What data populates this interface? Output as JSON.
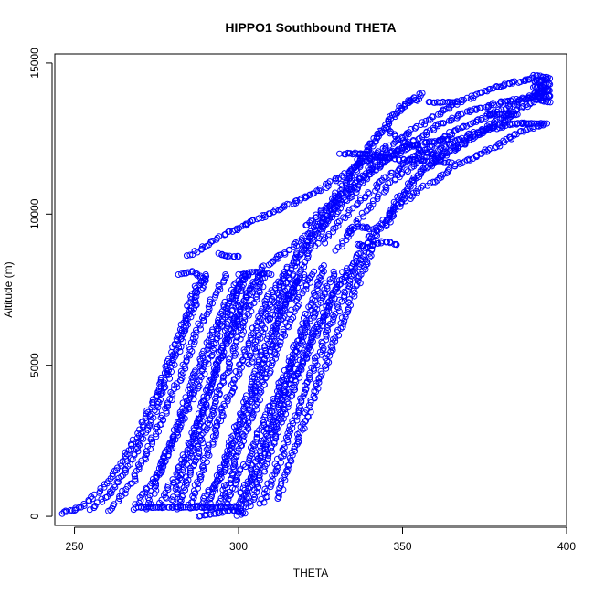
{
  "chart_data": {
    "type": "scatter",
    "title": "HIPPO1 Southbound THETA",
    "xlabel": "THETA",
    "ylabel": "Altitude (m)",
    "xlim": [
      244,
      400
    ],
    "ylim": [
      -300,
      15300
    ],
    "xticks": [
      250,
      300,
      350,
      400
    ],
    "yticks": [
      0,
      5000,
      10000,
      15000
    ],
    "marker": "open-circle",
    "color": "#0000ff",
    "grid": false,
    "legend": "none",
    "profiles": [
      [
        [
          246,
          100
        ],
        [
          252,
          300
        ],
        [
          258,
          900
        ],
        [
          264,
          1700
        ],
        [
          270,
          2800
        ],
        [
          276,
          4300
        ],
        [
          282,
          6000
        ],
        [
          287,
          7600
        ],
        [
          290,
          7800
        ]
      ],
      [
        [
          255,
          200
        ],
        [
          262,
          900
        ],
        [
          268,
          2000
        ],
        [
          274,
          3400
        ],
        [
          280,
          5000
        ],
        [
          285,
          6600
        ],
        [
          290,
          8000
        ]
      ],
      [
        [
          260,
          150
        ],
        [
          268,
          1200
        ],
        [
          275,
          2800
        ],
        [
          282,
          4600
        ],
        [
          288,
          6300
        ],
        [
          293,
          7400
        ],
        [
          296,
          8000
        ]
      ],
      [
        [
          268,
          200
        ],
        [
          276,
          1500
        ],
        [
          283,
          3200
        ],
        [
          290,
          5000
        ],
        [
          296,
          6600
        ],
        [
          301,
          7900
        ],
        [
          303,
          8000
        ]
      ],
      [
        [
          272,
          250
        ],
        [
          278,
          2000
        ],
        [
          284,
          3800
        ],
        [
          290,
          5600
        ],
        [
          296,
          7000
        ],
        [
          300,
          7800
        ]
      ],
      [
        [
          276,
          300
        ],
        [
          283,
          1800
        ],
        [
          289,
          3600
        ],
        [
          295,
          5400
        ],
        [
          301,
          7000
        ],
        [
          307,
          8000
        ]
      ],
      [
        [
          281,
          250
        ],
        [
          287,
          2000
        ],
        [
          293,
          3800
        ],
        [
          299,
          5600
        ],
        [
          304,
          7000
        ],
        [
          308,
          7900
        ]
      ],
      [
        [
          285,
          300
        ],
        [
          291,
          2200
        ],
        [
          297,
          4000
        ],
        [
          303,
          5700
        ],
        [
          309,
          7200
        ],
        [
          314,
          8000
        ]
      ],
      [
        [
          290,
          200
        ],
        [
          296,
          1900
        ],
        [
          302,
          3700
        ],
        [
          308,
          5500
        ],
        [
          314,
          7100
        ],
        [
          320,
          8000
        ]
      ],
      [
        [
          294,
          300
        ],
        [
          300,
          2100
        ],
        [
          306,
          3900
        ],
        [
          312,
          5600
        ],
        [
          318,
          7100
        ],
        [
          323,
          8100
        ]
      ],
      [
        [
          299,
          200
        ],
        [
          305,
          1800
        ],
        [
          311,
          3500
        ],
        [
          317,
          5200
        ],
        [
          323,
          6800
        ],
        [
          329,
          8100
        ]
      ],
      [
        [
          303,
          300
        ],
        [
          309,
          2000
        ],
        [
          315,
          3800
        ],
        [
          321,
          5400
        ],
        [
          327,
          6900
        ],
        [
          333,
          8200
        ]
      ],
      [
        [
          307,
          400
        ],
        [
          314,
          2300
        ],
        [
          320,
          4100
        ],
        [
          326,
          5800
        ],
        [
          332,
          7300
        ],
        [
          338,
          8600
        ]
      ],
      [
        [
          300,
          0
        ],
        [
          306,
          1700
        ],
        [
          312,
          3300
        ],
        [
          318,
          4900
        ],
        [
          324,
          6300
        ],
        [
          330,
          7500
        ],
        [
          336,
          8400
        ]
      ],
      [
        [
          312,
          600
        ],
        [
          318,
          2500
        ],
        [
          324,
          4300
        ],
        [
          330,
          6000
        ],
        [
          336,
          7600
        ],
        [
          341,
          9000
        ]
      ],
      [
        [
          296,
          400
        ],
        [
          304,
          2200
        ],
        [
          311,
          3900
        ],
        [
          317,
          5500
        ],
        [
          322,
          7000
        ],
        [
          326,
          8300
        ]
      ],
      [
        [
          288,
          300
        ],
        [
          295,
          1400
        ],
        [
          301,
          3000
        ],
        [
          307,
          4800
        ],
        [
          313,
          6500
        ],
        [
          318,
          7800
        ]
      ],
      [
        [
          280,
          500
        ],
        [
          285,
          2000
        ],
        [
          290,
          3800
        ],
        [
          295,
          5500
        ],
        [
          299,
          7000
        ],
        [
          302,
          8000
        ]
      ],
      [
        [
          303,
          5000
        ],
        [
          310,
          7000
        ],
        [
          317,
          8600
        ],
        [
          322,
          9200
        ],
        [
          328,
          9900
        ],
        [
          334,
          10600
        ],
        [
          340,
          11300
        ],
        [
          346,
          11900
        ],
        [
          352,
          12200
        ]
      ],
      [
        [
          298,
          6000
        ],
        [
          304,
          7600
        ],
        [
          308,
          8300
        ],
        [
          314,
          8700
        ],
        [
          320,
          9200
        ],
        [
          326,
          9800
        ],
        [
          332,
          10500
        ],
        [
          338,
          11300
        ],
        [
          344,
          12000
        ]
      ],
      [
        [
          310,
          6500
        ],
        [
          318,
          8500
        ],
        [
          326,
          10000
        ],
        [
          333,
          11200
        ],
        [
          340,
          12300
        ],
        [
          347,
          13200
        ],
        [
          352,
          13700
        ],
        [
          355,
          13800
        ]
      ],
      [
        [
          315,
          7200
        ],
        [
          323,
          9000
        ],
        [
          330,
          10400
        ],
        [
          337,
          11700
        ],
        [
          343,
          12700
        ],
        [
          349,
          13500
        ],
        [
          356,
          14000
        ]
      ],
      [
        [
          285,
          8600
        ],
        [
          295,
          9300
        ],
        [
          305,
          9800
        ],
        [
          315,
          10300
        ],
        [
          325,
          10800
        ],
        [
          335,
          11500
        ],
        [
          345,
          12200
        ],
        [
          355,
          12900
        ],
        [
          365,
          13600
        ],
        [
          378,
          14200
        ],
        [
          390,
          14500
        ]
      ],
      [
        [
          320,
          9600
        ],
        [
          330,
          10500
        ],
        [
          340,
          11400
        ],
        [
          350,
          12200
        ],
        [
          360,
          12900
        ],
        [
          370,
          13400
        ],
        [
          380,
          13700
        ],
        [
          392,
          13900
        ]
      ],
      [
        [
          325,
          9000
        ],
        [
          335,
          10200
        ],
        [
          345,
          11200
        ],
        [
          355,
          12000
        ],
        [
          365,
          12700
        ],
        [
          375,
          13200
        ],
        [
          385,
          13700
        ],
        [
          394,
          14100
        ]
      ],
      [
        [
          330,
          8800
        ],
        [
          338,
          10000
        ],
        [
          346,
          11000
        ],
        [
          354,
          11700
        ],
        [
          362,
          12200
        ],
        [
          372,
          12700
        ],
        [
          384,
          13000
        ],
        [
          390,
          13000
        ]
      ],
      [
        [
          335,
          8400
        ],
        [
          342,
          9500
        ],
        [
          350,
          10400
        ],
        [
          358,
          11000
        ],
        [
          366,
          11600
        ],
        [
          376,
          12100
        ],
        [
          386,
          12700
        ],
        [
          394,
          13000
        ]
      ],
      [
        [
          340,
          9000
        ],
        [
          348,
          10400
        ],
        [
          356,
          11400
        ],
        [
          364,
          12000
        ],
        [
          372,
          12600
        ],
        [
          380,
          13200
        ],
        [
          390,
          13700
        ]
      ],
      [
        [
          345,
          9600
        ],
        [
          352,
          11000
        ],
        [
          360,
          11800
        ],
        [
          368,
          12300
        ],
        [
          376,
          12800
        ],
        [
          385,
          13300
        ]
      ],
      [
        [
          331,
          12000
        ],
        [
          340,
          12000
        ],
        [
          348,
          11800
        ],
        [
          355,
          11800
        ],
        [
          365,
          11700
        ]
      ],
      [
        [
          335,
          11600
        ],
        [
          343,
          11900
        ],
        [
          350,
          12200
        ],
        [
          358,
          12400
        ],
        [
          365,
          12500
        ]
      ],
      [
        [
          345,
          12800
        ],
        [
          352,
          12300
        ],
        [
          358,
          12000
        ],
        [
          362,
          11900
        ]
      ],
      [
        [
          336,
          9000
        ],
        [
          340,
          8900
        ],
        [
          344,
          9100
        ],
        [
          348,
          9000
        ]
      ],
      [
        [
          333,
          9400
        ],
        [
          337,
          9600
        ],
        [
          341,
          9500
        ]
      ]
    ],
    "flat_segments": [
      [
        [
          390,
          14600
        ],
        [
          395,
          14500
        ],
        [
          390,
          14400
        ],
        [
          395,
          14300
        ],
        [
          390,
          14200
        ],
        [
          395,
          14100
        ],
        [
          390,
          14000
        ],
        [
          395,
          13900
        ],
        [
          390,
          13800
        ],
        [
          395,
          13700
        ]
      ],
      [
        [
          358,
          13700
        ],
        [
          362,
          13700
        ],
        [
          366,
          13700
        ]
      ],
      [
        [
          376,
          13300
        ],
        [
          380,
          13300
        ],
        [
          384,
          13300
        ]
      ],
      [
        [
          385,
          13000
        ],
        [
          389,
          13000
        ],
        [
          393,
          13000
        ]
      ],
      [
        [
          282,
          8000
        ],
        [
          286,
          8100
        ],
        [
          290,
          7800
        ]
      ],
      [
        [
          300,
          8000
        ],
        [
          305,
          8100
        ],
        [
          310,
          8000
        ]
      ],
      [
        [
          294,
          8700
        ],
        [
          297,
          8600
        ],
        [
          300,
          8600
        ]
      ],
      [
        [
          270,
          300
        ],
        [
          280,
          300
        ],
        [
          290,
          300
        ],
        [
          300,
          300
        ]
      ],
      [
        [
          288,
          0
        ],
        [
          293,
          100
        ],
        [
          298,
          200
        ],
        [
          302,
          100
        ]
      ]
    ]
  }
}
